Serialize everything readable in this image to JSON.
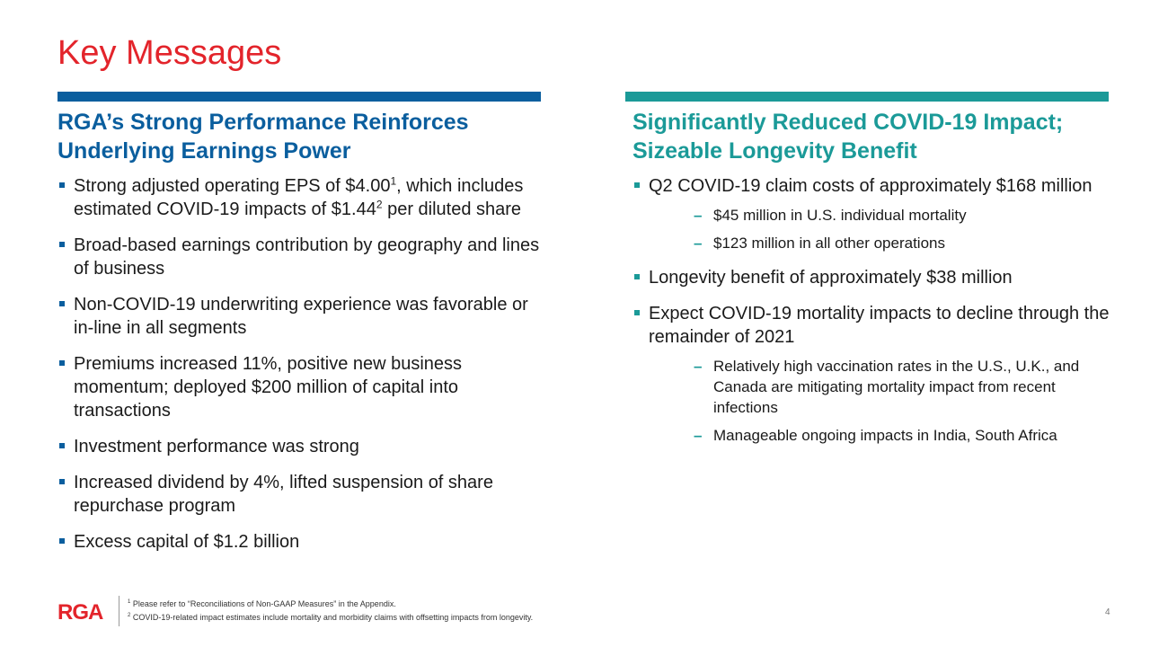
{
  "title": "Key Messages",
  "colors": {
    "title": "#e3242b",
    "left_accent": "#0a5e9e",
    "right_accent": "#1b9a98"
  },
  "left": {
    "heading_line1": "RGA’s Strong Performance Reinforces",
    "heading_line2": "Underlying Earnings Power",
    "bullets": [
      {
        "pre": "Strong adjusted operating EPS of $4.00",
        "sup1": "1",
        "mid": ", which includes estimated COVID-19 impacts of $1.44",
        "sup2": "2",
        "post": " per diluted share"
      },
      {
        "text": "Broad-based earnings contribution by geography and lines of business"
      },
      {
        "text": "Non-COVID-19 underwriting experience was favorable or in-line in all segments"
      },
      {
        "text": "Premiums increased 11%, positive new business momentum; deployed $200 million of capital into transactions"
      },
      {
        "text": "Investment performance was strong"
      },
      {
        "text": "Increased dividend by 4%, lifted suspension of share repurchase program"
      },
      {
        "text": "Excess capital of $1.2 billion"
      }
    ]
  },
  "right": {
    "heading_line1": "Significantly Reduced COVID-19 Impact;",
    "heading_line2": "Sizeable Longevity Benefit",
    "bullets": [
      {
        "text": "Q2 COVID-19 claim costs of approximately $168 million",
        "sub": [
          "$45 million in U.S. individual mortality",
          "$123 million in all other operations"
        ]
      },
      {
        "text": "Longevity benefit of approximately $38 million"
      },
      {
        "text": "Expect COVID-19 mortality impacts to decline through the remainder of 2021",
        "sub": [
          "Relatively high vaccination rates in the U.S., U.K., and Canada are mitigating mortality impact from recent infections",
          "Manageable ongoing impacts in India, South Africa"
        ]
      }
    ]
  },
  "footer": {
    "logo": "RGA",
    "footnote1_mark": "1",
    "footnote1": " Please refer to “Reconciliations of Non-GAAP Measures” in the Appendix.",
    "footnote2_mark": "2",
    "footnote2": " COVID-19-related impact estimates include mortality and morbidity claims with offsetting impacts from longevity.",
    "page_number": "4"
  }
}
